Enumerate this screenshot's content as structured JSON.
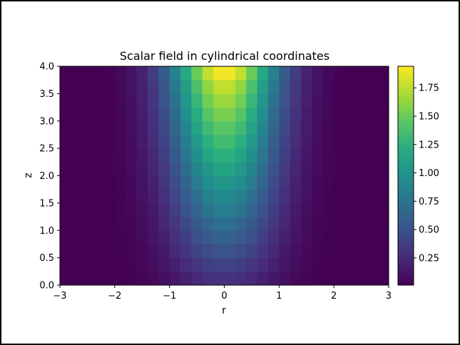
{
  "chart_data": {
    "type": "heatmap",
    "title": "Scalar field in cylindrical coordinates",
    "xlabel": "r",
    "ylabel": "z",
    "xlim": [
      -3,
      3
    ],
    "ylim": [
      0,
      4
    ],
    "grid": false,
    "colormap": "viridis",
    "x_edges": [
      -3.0,
      -2.8,
      -2.6,
      -2.4,
      -2.2,
      -2.0,
      -1.8,
      -1.6,
      -1.4,
      -1.2,
      -1.0,
      -0.8,
      -0.6,
      -0.4,
      -0.2,
      0.0,
      0.2,
      0.4,
      0.6,
      0.8,
      1.0,
      1.2,
      1.4,
      1.6,
      1.8,
      2.0,
      2.2,
      2.4,
      2.6,
      2.8,
      3.0
    ],
    "z_edges": [
      0.0,
      0.25,
      0.5,
      0.75,
      1.0,
      1.25,
      1.5,
      1.75,
      2.0,
      2.25,
      2.5,
      2.75,
      3.0,
      3.25,
      3.5,
      3.75,
      4.0
    ],
    "field_description": "Value increases with z and peaks at r = 0; cell values approximate exp(-r^2) * (0.25 + 0.42 z) with peak about 1.93 at z near 4.",
    "peak_values_by_z_at_r0": [
      0.3,
      0.4,
      0.5,
      0.61,
      0.71,
      0.82,
      0.92,
      1.03,
      1.13,
      1.24,
      1.34,
      1.45,
      1.56,
      1.66,
      1.77,
      1.93
    ],
    "x_ticks": [
      "−3",
      "−2",
      "−1",
      "0",
      "1",
      "2",
      "3"
    ],
    "y_ticks": [
      "0.0",
      "0.5",
      "1.0",
      "1.5",
      "2.0",
      "2.5",
      "3.0",
      "3.5",
      "4.0"
    ],
    "colorbar": {
      "range": [
        0.01,
        1.94
      ],
      "ticks": [
        "0.25",
        "0.50",
        "0.75",
        "1.00",
        "1.25",
        "1.50",
        "1.75"
      ],
      "tick_values": [
        0.25,
        0.5,
        0.75,
        1.0,
        1.25,
        1.5,
        1.75
      ]
    }
  }
}
